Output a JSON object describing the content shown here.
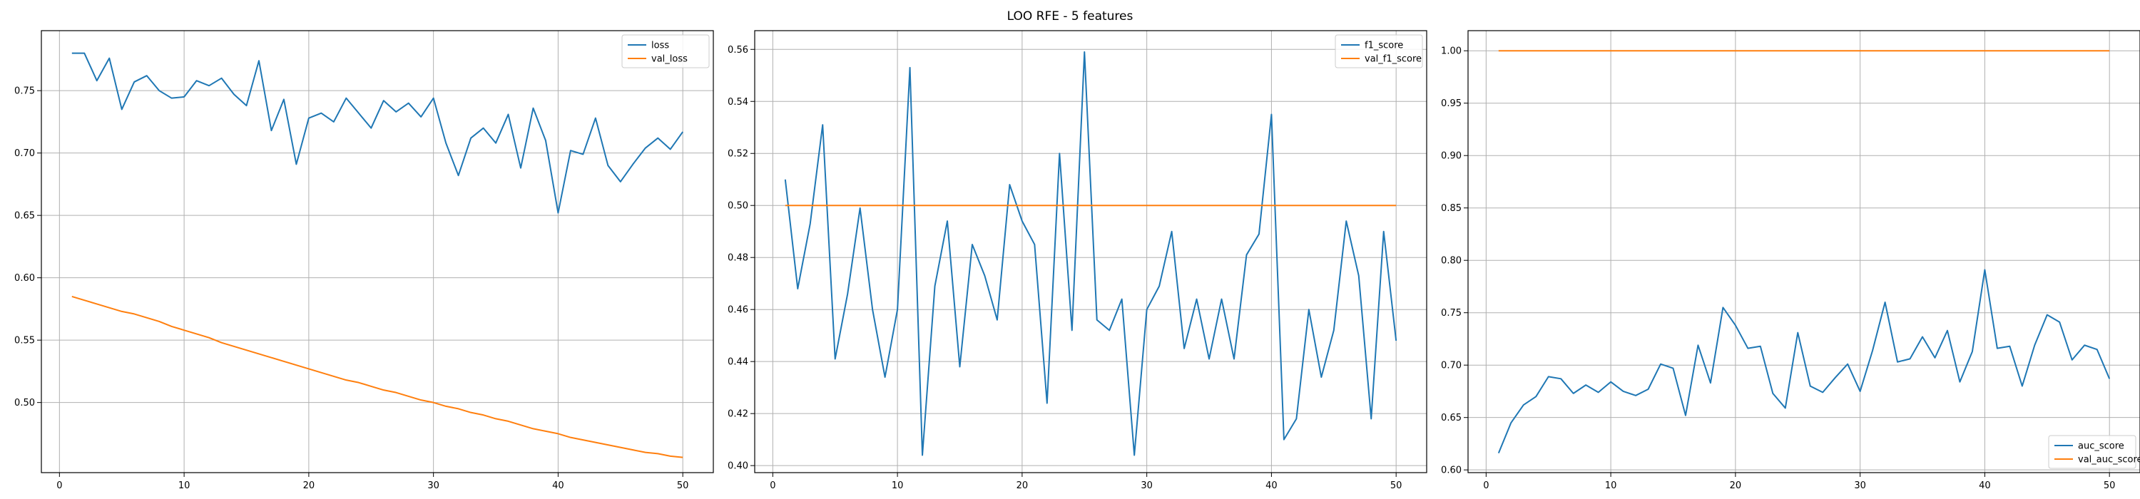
{
  "figure": {
    "title": "LOO RFE - 5 features"
  },
  "colors": {
    "blue": "#1f77b4",
    "orange": "#ff7f0e",
    "grid": "#b0b0b0"
  },
  "chart_data": [
    {
      "type": "line",
      "title": "",
      "xlabel": "",
      "ylabel": "",
      "xlim": [
        -1.45,
        52.45
      ],
      "ylim": [
        0.4438,
        0.7981
      ],
      "xticks": [
        0,
        10,
        20,
        30,
        40,
        50
      ],
      "yticks": [
        0.5,
        0.55,
        0.6,
        0.65,
        0.7,
        0.75
      ],
      "ytick_labels": [
        "0.50",
        "0.55",
        "0.60",
        "0.65",
        "0.70",
        "0.75"
      ],
      "grid": true,
      "legend": "upper-right",
      "x": [
        1,
        2,
        3,
        4,
        5,
        6,
        7,
        8,
        9,
        10,
        11,
        12,
        13,
        14,
        15,
        16,
        17,
        18,
        19,
        20,
        21,
        22,
        23,
        24,
        25,
        26,
        27,
        28,
        29,
        30,
        31,
        32,
        33,
        34,
        35,
        36,
        37,
        38,
        39,
        40,
        41,
        42,
        43,
        44,
        45,
        46,
        47,
        48,
        49,
        50
      ],
      "series": [
        {
          "name": "loss",
          "color": "#1f77b4",
          "values": [
            0.78,
            0.78,
            0.758,
            0.776,
            0.735,
            0.757,
            0.762,
            0.75,
            0.744,
            0.745,
            0.758,
            0.754,
            0.76,
            0.747,
            0.738,
            0.774,
            0.718,
            0.743,
            0.691,
            0.728,
            0.732,
            0.725,
            0.744,
            0.732,
            0.72,
            0.742,
            0.733,
            0.74,
            0.729,
            0.744,
            0.708,
            0.682,
            0.712,
            0.72,
            0.708,
            0.731,
            0.688,
            0.736,
            0.71,
            0.652,
            0.702,
            0.699,
            0.728,
            0.69,
            0.677,
            0.691,
            0.704,
            0.712,
            0.703,
            0.717
          ]
        },
        {
          "name": "val_loss",
          "color": "#ff7f0e",
          "values": [
            0.585,
            0.582,
            0.579,
            0.576,
            0.573,
            0.571,
            0.568,
            0.565,
            0.561,
            0.558,
            0.555,
            0.552,
            0.548,
            0.545,
            0.542,
            0.539,
            0.536,
            0.533,
            0.53,
            0.527,
            0.524,
            0.521,
            0.518,
            0.516,
            0.513,
            0.51,
            0.508,
            0.505,
            0.502,
            0.5,
            0.497,
            0.495,
            0.492,
            0.49,
            0.487,
            0.485,
            0.482,
            0.479,
            0.477,
            0.475,
            0.472,
            0.47,
            0.468,
            0.466,
            0.464,
            0.462,
            0.46,
            0.459,
            0.457,
            0.456
          ]
        }
      ]
    },
    {
      "type": "line",
      "title": "",
      "xlabel": "",
      "ylabel": "",
      "xlim": [
        -1.45,
        52.45
      ],
      "ylim": [
        0.3973,
        0.5672
      ],
      "xticks": [
        0,
        10,
        20,
        30,
        40,
        50
      ],
      "yticks": [
        0.4,
        0.42,
        0.44,
        0.46,
        0.48,
        0.5,
        0.52,
        0.54,
        0.56
      ],
      "ytick_labels": [
        "0.40",
        "0.42",
        "0.44",
        "0.46",
        "0.48",
        "0.50",
        "0.52",
        "0.54",
        "0.56"
      ],
      "grid": true,
      "legend": "upper-right",
      "x": [
        1,
        2,
        3,
        4,
        5,
        6,
        7,
        8,
        9,
        10,
        11,
        12,
        13,
        14,
        15,
        16,
        17,
        18,
        19,
        20,
        21,
        22,
        23,
        24,
        25,
        26,
        27,
        28,
        29,
        30,
        31,
        32,
        33,
        34,
        35,
        36,
        37,
        38,
        39,
        40,
        41,
        42,
        43,
        44,
        45,
        46,
        47,
        48,
        49,
        50
      ],
      "series": [
        {
          "name": "f1_score",
          "color": "#1f77b4",
          "values": [
            0.51,
            0.468,
            0.493,
            0.531,
            0.441,
            0.466,
            0.499,
            0.46,
            0.434,
            0.46,
            0.553,
            0.404,
            0.469,
            0.494,
            0.438,
            0.485,
            0.473,
            0.456,
            0.508,
            0.494,
            0.485,
            0.424,
            0.52,
            0.452,
            0.559,
            0.456,
            0.452,
            0.464,
            0.404,
            0.46,
            0.469,
            0.49,
            0.445,
            0.464,
            0.441,
            0.464,
            0.441,
            0.481,
            0.489,
            0.535,
            0.41,
            0.418,
            0.46,
            0.434,
            0.452,
            0.494,
            0.473,
            0.418,
            0.49,
            0.448
          ]
        },
        {
          "name": "val_f1_score",
          "color": "#ff7f0e",
          "values": [
            0.5,
            0.5,
            0.5,
            0.5,
            0.5,
            0.5,
            0.5,
            0.5,
            0.5,
            0.5,
            0.5,
            0.5,
            0.5,
            0.5,
            0.5,
            0.5,
            0.5,
            0.5,
            0.5,
            0.5,
            0.5,
            0.5,
            0.5,
            0.5,
            0.5,
            0.5,
            0.5,
            0.5,
            0.5,
            0.5,
            0.5,
            0.5,
            0.5,
            0.5,
            0.5,
            0.5,
            0.5,
            0.5,
            0.5,
            0.5,
            0.5,
            0.5,
            0.5,
            0.5,
            0.5,
            0.5,
            0.5,
            0.5,
            0.5,
            0.5
          ]
        }
      ]
    },
    {
      "type": "line",
      "title": "",
      "xlabel": "",
      "ylabel": "",
      "xlim": [
        -1.45,
        52.45
      ],
      "ylim": [
        0.5974,
        1.0192
      ],
      "xticks": [
        0,
        10,
        20,
        30,
        40,
        50
      ],
      "yticks": [
        0.6,
        0.65,
        0.7,
        0.75,
        0.8,
        0.85,
        0.9,
        0.95,
        1.0
      ],
      "ytick_labels": [
        "0.60",
        "0.65",
        "0.70",
        "0.75",
        "0.80",
        "0.85",
        "0.90",
        "0.95",
        "1.00"
      ],
      "grid": true,
      "legend": "lower-right",
      "x": [
        1,
        2,
        3,
        4,
        5,
        6,
        7,
        8,
        9,
        10,
        11,
        12,
        13,
        14,
        15,
        16,
        17,
        18,
        19,
        20,
        21,
        22,
        23,
        24,
        25,
        26,
        27,
        28,
        29,
        30,
        31,
        32,
        33,
        34,
        35,
        36,
        37,
        38,
        39,
        40,
        41,
        42,
        43,
        44,
        45,
        46,
        47,
        48,
        49,
        50
      ],
      "series": [
        {
          "name": "auc_score",
          "color": "#1f77b4",
          "values": [
            0.616,
            0.645,
            0.662,
            0.67,
            0.689,
            0.687,
            0.673,
            0.681,
            0.674,
            0.684,
            0.675,
            0.671,
            0.677,
            0.701,
            0.697,
            0.652,
            0.719,
            0.683,
            0.755,
            0.738,
            0.716,
            0.718,
            0.673,
            0.659,
            0.731,
            0.68,
            0.674,
            0.688,
            0.701,
            0.675,
            0.714,
            0.76,
            0.703,
            0.706,
            0.727,
            0.707,
            0.733,
            0.684,
            0.713,
            0.791,
            0.716,
            0.718,
            0.68,
            0.719,
            0.748,
            0.741,
            0.705,
            0.719,
            0.715,
            0.687
          ]
        },
        {
          "name": "val_auc_score",
          "color": "#ff7f0e",
          "values": [
            1.0,
            1.0,
            1.0,
            1.0,
            1.0,
            1.0,
            1.0,
            1.0,
            1.0,
            1.0,
            1.0,
            1.0,
            1.0,
            1.0,
            1.0,
            1.0,
            1.0,
            1.0,
            1.0,
            1.0,
            1.0,
            1.0,
            1.0,
            1.0,
            1.0,
            1.0,
            1.0,
            1.0,
            1.0,
            1.0,
            1.0,
            1.0,
            1.0,
            1.0,
            1.0,
            1.0,
            1.0,
            1.0,
            1.0,
            1.0,
            1.0,
            1.0,
            1.0,
            1.0,
            1.0,
            1.0,
            1.0,
            1.0,
            1.0,
            1.0
          ]
        }
      ]
    }
  ]
}
